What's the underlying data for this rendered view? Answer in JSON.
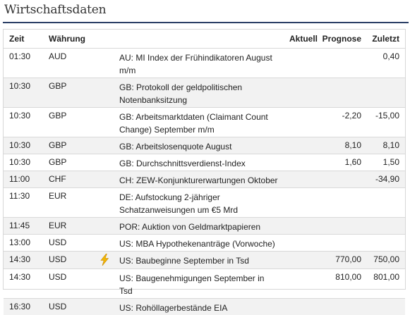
{
  "title": "Wirtschaftsdaten",
  "headers": {
    "zeit": "Zeit",
    "waehrung": "Währung",
    "aktuell": "Aktuell",
    "prognose": "Prognose",
    "zuletzt": "Zuletzt"
  },
  "rows": [
    {
      "time": "01:30",
      "currency": "AUD",
      "icon": "",
      "desc": "AU: MI Index der Frühindikatoren August m/m",
      "aktuell": "",
      "prognose": "",
      "zuletzt": "0,40"
    },
    {
      "time": "10:30",
      "currency": "GBP",
      "icon": "",
      "desc": "GB: Protokoll der geldpolitischen Notenbanksitzung",
      "aktuell": "",
      "prognose": "",
      "zuletzt": ""
    },
    {
      "time": "10:30",
      "currency": "GBP",
      "icon": "",
      "desc": "GB: Arbeitsmarktdaten (Claimant Count Change) September m/m",
      "aktuell": "",
      "prognose": "-2,20",
      "zuletzt": "-15,00"
    },
    {
      "time": "10:30",
      "currency": "GBP",
      "icon": "",
      "desc": "GB: Arbeitslosenquote August",
      "aktuell": "",
      "prognose": "8,10",
      "zuletzt": "8,10"
    },
    {
      "time": "10:30",
      "currency": "GBP",
      "icon": "",
      "desc": "GB: Durchschnittsverdienst-Index",
      "aktuell": "",
      "prognose": "1,60",
      "zuletzt": "1,50"
    },
    {
      "time": "11:00",
      "currency": "CHF",
      "icon": "",
      "desc": "CH: ZEW-Konjunkturerwartungen Oktober",
      "aktuell": "",
      "prognose": "",
      "zuletzt": "-34,90"
    },
    {
      "time": "11:30",
      "currency": "EUR",
      "icon": "",
      "desc": "DE: Aufstockung 2-jähriger Schatzanweisungen um €5 Mrd",
      "aktuell": "",
      "prognose": "",
      "zuletzt": ""
    },
    {
      "time": "11:45",
      "currency": "EUR",
      "icon": "",
      "desc": "POR: Auktion von Geldmarktpapieren",
      "aktuell": "",
      "prognose": "",
      "zuletzt": ""
    },
    {
      "time": "13:00",
      "currency": "USD",
      "icon": "",
      "desc": "US: MBA Hypothekenanträge (Vorwoche)",
      "aktuell": "",
      "prognose": "",
      "zuletzt": ""
    },
    {
      "time": "14:30",
      "currency": "USD",
      "icon": "lightning-bolt-icon",
      "desc": "US: Baubeginne September in Tsd",
      "aktuell": "",
      "prognose": "770,00",
      "zuletzt": "750,00"
    },
    {
      "time": "14:30",
      "currency": "USD",
      "icon": "",
      "desc": "US: Baugenehmigungen September in Tsd",
      "aktuell": "",
      "prognose": "810,00",
      "zuletzt": "801,00"
    },
    {
      "time": "16:30",
      "currency": "USD",
      "icon": "",
      "desc": "US: Rohöllagerbestände EIA",
      "aktuell": "",
      "prognose": "",
      "zuletzt": ""
    }
  ],
  "colors": {
    "title_rule": "#2b3f66",
    "row_alt": "#f2f2f2",
    "bolt": "#f2b705"
  }
}
